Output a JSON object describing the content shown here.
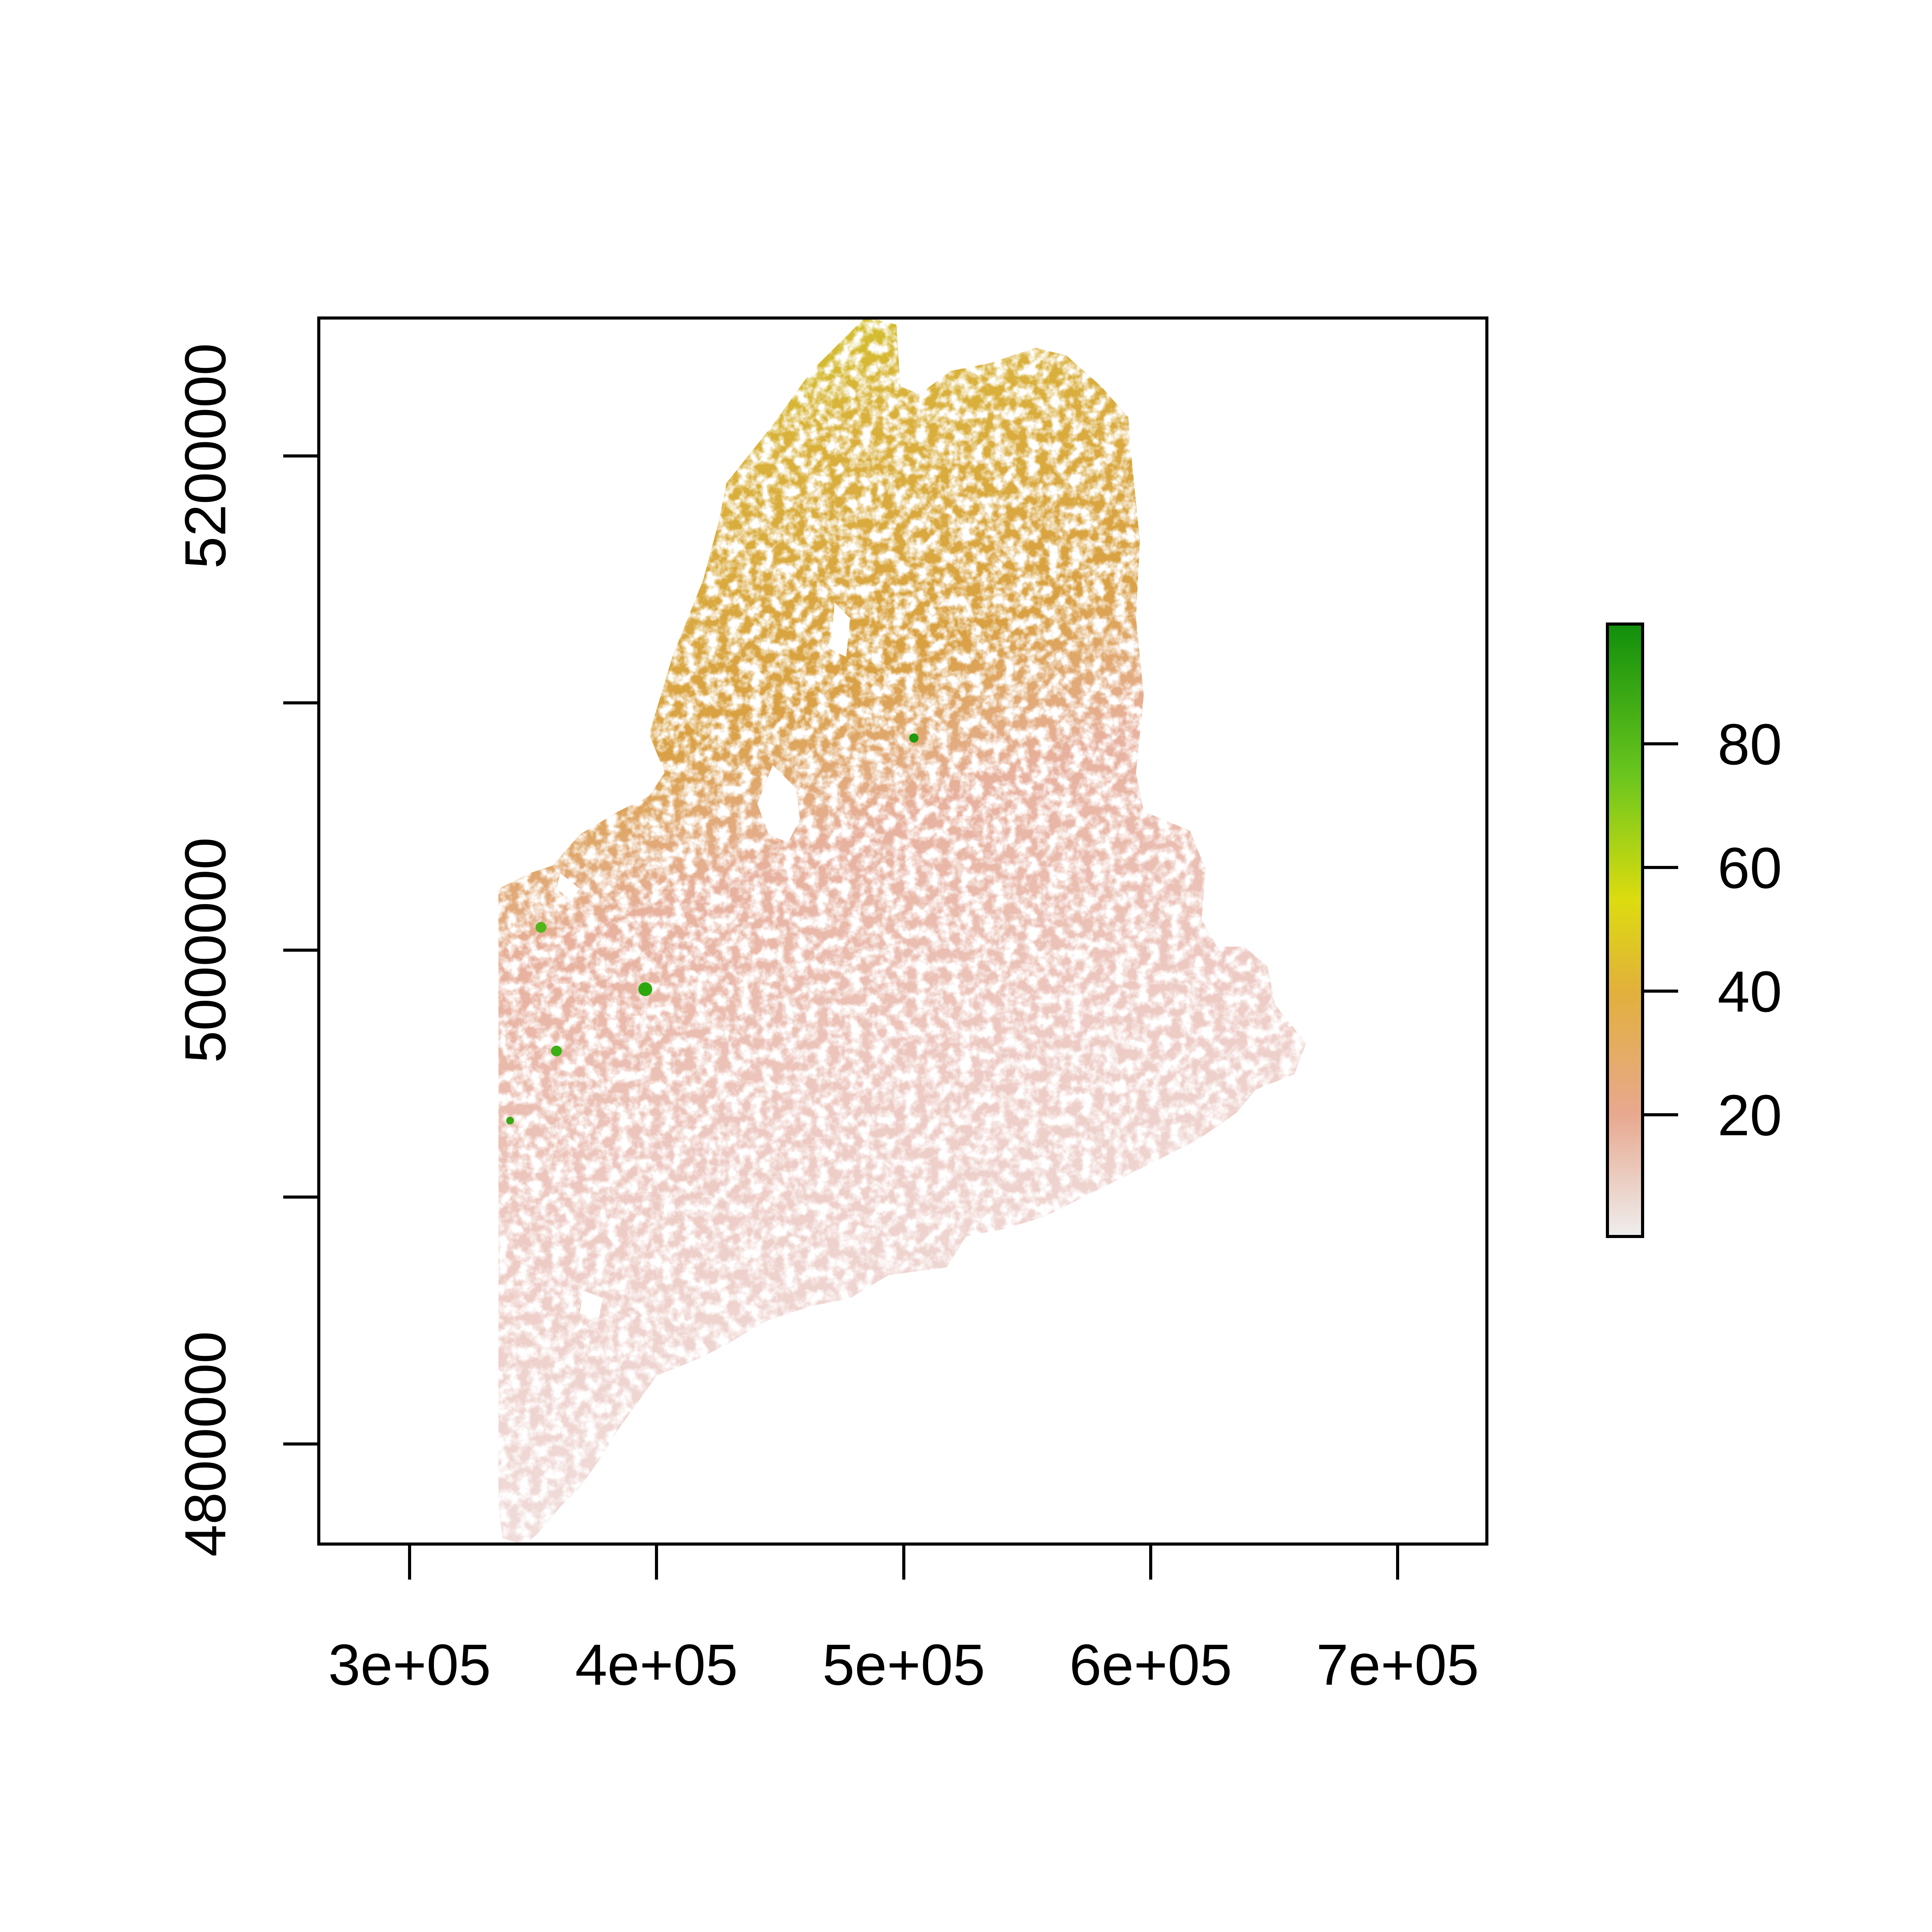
{
  "chart_data": {
    "type": "heatmap",
    "title": "",
    "xlabel": "",
    "ylabel": "",
    "xlim": [
      263000,
      736000
    ],
    "ylim": [
      4759000,
      5256000
    ],
    "x_ticks": [
      300000,
      400000,
      500000,
      600000,
      700000
    ],
    "x_tick_labels": [
      "3e+05",
      "4e+05",
      "5e+05",
      "6e+05",
      "7e+05"
    ],
    "y_ticks": [
      4800000,
      4900000,
      5000000,
      5100000,
      5200000
    ],
    "y_tick_labels": [
      "4800000",
      "",
      "5000000",
      "",
      "5200000"
    ],
    "legend": {
      "position": "right",
      "range": [
        0,
        98
      ],
      "ticks": [
        20,
        40,
        60,
        80
      ],
      "tick_labels": [
        "20",
        "40",
        "60",
        "80"
      ]
    },
    "grid": false,
    "colorscale": [
      "#eeeeee",
      "#e8a88f",
      "#e2b03c",
      "#dcdc0f",
      "#6cc61e",
      "#118f0c"
    ]
  }
}
